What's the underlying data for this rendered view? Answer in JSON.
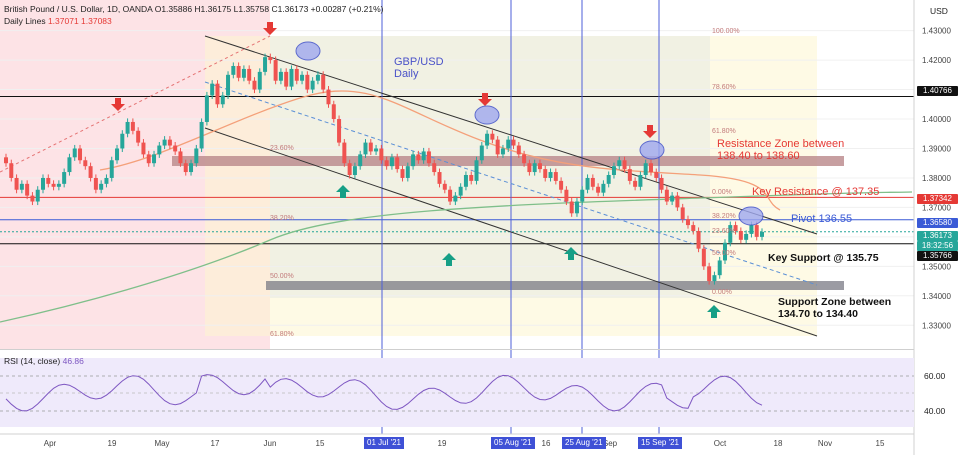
{
  "header": {
    "instrument": "British Pound / U.S. Dollar, 1D, OANDA",
    "ohlc": "O1.35886 H1.36175 L1.35758 C1.36173 +0.00287 (+0.21%)",
    "indicator": "Daily Lines",
    "indicator_values": "1.37071  1.37083",
    "currency": "USD"
  },
  "rsi": {
    "label": "RSI (14, close)",
    "value": "46.86",
    "levels": [
      "60.00",
      "40.00"
    ]
  },
  "annotations": {
    "chart_title_line1": "GBP/USD",
    "chart_title_line2": "Daily",
    "resistance_zone_line1": "Resistance Zone between",
    "resistance_zone_line2": "138.40 to 138.60",
    "key_resistance": "Key Resistance @ 137.35",
    "pivot": "Pivot 136.55",
    "key_support": "Key Support @ 135.75",
    "support_zone_line1": "Support Zone between",
    "support_zone_line2": "134.70 to 134.40"
  },
  "fib_levels": [
    "100.00%",
    "78.60%",
    "61.80%",
    "50.00%",
    "38.20%",
    "23.60%",
    "0.00%",
    "61.80%",
    "50.00%",
    "38.20%",
    "23.60%",
    "0.00%"
  ],
  "price_tags": [
    {
      "label": "1.40766",
      "color": "#111111"
    },
    {
      "label": "1.37342",
      "color": "#e53935"
    },
    {
      "label": "1.36580",
      "color": "#3a5ad6"
    },
    {
      "label": "1.36173",
      "color": "#26a69a"
    },
    {
      "label": "18:32:56",
      "color": "#26a69a"
    },
    {
      "label": "1.35766",
      "color": "#111111"
    }
  ],
  "date_boxes": [
    "01 Jul '21",
    "05 Aug '21",
    "25 Aug '21",
    "15 Sep '21"
  ],
  "chart_data": {
    "type": "candlestick",
    "y_axis_ticks": [
      "1.43000",
      "1.42000",
      "1.41000",
      "1.40000",
      "1.39000",
      "1.38000",
      "1.37000",
      "1.36000",
      "1.35000",
      "1.34000",
      "1.33000"
    ],
    "x_axis_ticks": [
      "Apr",
      "19",
      "May",
      "17",
      "Jun",
      "15",
      "01 Jul '21",
      "19",
      "05 Aug '21",
      "16",
      "25 Aug '21",
      "Sep",
      "15 Sep '21",
      "Oct",
      "18",
      "Nov",
      "15"
    ],
    "ylim": [
      1.325,
      1.437
    ],
    "last_close": 1.36173,
    "candles": [
      [
        1.387,
        1.385
      ],
      [
        1.385,
        1.38
      ],
      [
        1.38,
        1.376
      ],
      [
        1.376,
        1.378
      ],
      [
        1.378,
        1.374
      ],
      [
        1.374,
        1.372
      ],
      [
        1.372,
        1.376
      ],
      [
        1.376,
        1.38
      ],
      [
        1.38,
        1.378
      ],
      [
        1.378,
        1.377
      ],
      [
        1.377,
        1.378
      ],
      [
        1.378,
        1.382
      ],
      [
        1.382,
        1.387
      ],
      [
        1.387,
        1.39
      ],
      [
        1.39,
        1.386
      ],
      [
        1.386,
        1.384
      ],
      [
        1.384,
        1.38
      ],
      [
        1.38,
        1.376
      ],
      [
        1.376,
        1.378
      ],
      [
        1.378,
        1.38
      ],
      [
        1.38,
        1.386
      ],
      [
        1.386,
        1.39
      ],
      [
        1.39,
        1.395
      ],
      [
        1.395,
        1.399
      ],
      [
        1.399,
        1.396
      ],
      [
        1.396,
        1.392
      ],
      [
        1.392,
        1.388
      ],
      [
        1.388,
        1.385
      ],
      [
        1.385,
        1.388
      ],
      [
        1.388,
        1.391
      ],
      [
        1.391,
        1.393
      ],
      [
        1.393,
        1.391
      ],
      [
        1.391,
        1.389
      ],
      [
        1.389,
        1.385
      ],
      [
        1.385,
        1.382
      ],
      [
        1.382,
        1.385
      ],
      [
        1.385,
        1.39
      ],
      [
        1.39,
        1.399
      ],
      [
        1.399,
        1.408
      ],
      [
        1.408,
        1.412
      ],
      [
        1.412,
        1.405
      ],
      [
        1.405,
        1.408
      ],
      [
        1.408,
        1.415
      ],
      [
        1.415,
        1.418
      ],
      [
        1.418,
        1.414
      ],
      [
        1.414,
        1.417
      ],
      [
        1.417,
        1.413
      ],
      [
        1.413,
        1.41
      ],
      [
        1.41,
        1.416
      ],
      [
        1.416,
        1.421
      ],
      [
        1.421,
        1.42
      ],
      [
        1.42,
        1.413
      ],
      [
        1.413,
        1.416
      ],
      [
        1.416,
        1.411
      ],
      [
        1.411,
        1.417
      ],
      [
        1.417,
        1.413
      ],
      [
        1.413,
        1.415
      ],
      [
        1.415,
        1.41
      ],
      [
        1.41,
        1.413
      ],
      [
        1.413,
        1.415
      ],
      [
        1.415,
        1.41
      ],
      [
        1.41,
        1.405
      ],
      [
        1.405,
        1.4
      ],
      [
        1.4,
        1.392
      ],
      [
        1.392,
        1.385
      ],
      [
        1.385,
        1.381
      ],
      [
        1.381,
        1.384
      ],
      [
        1.384,
        1.388
      ],
      [
        1.388,
        1.392
      ],
      [
        1.392,
        1.389
      ],
      [
        1.389,
        1.39
      ],
      [
        1.39,
        1.386
      ],
      [
        1.386,
        1.384
      ],
      [
        1.384,
        1.387
      ],
      [
        1.387,
        1.383
      ],
      [
        1.383,
        1.38
      ],
      [
        1.38,
        1.384
      ],
      [
        1.384,
        1.388
      ],
      [
        1.388,
        1.386
      ],
      [
        1.386,
        1.389
      ],
      [
        1.389,
        1.385
      ],
      [
        1.385,
        1.382
      ],
      [
        1.382,
        1.378
      ],
      [
        1.378,
        1.376
      ],
      [
        1.376,
        1.372
      ],
      [
        1.372,
        1.374
      ],
      [
        1.374,
        1.377
      ],
      [
        1.377,
        1.381
      ],
      [
        1.381,
        1.379
      ],
      [
        1.379,
        1.386
      ],
      [
        1.386,
        1.391
      ],
      [
        1.391,
        1.395
      ],
      [
        1.395,
        1.393
      ],
      [
        1.393,
        1.388
      ],
      [
        1.388,
        1.39
      ],
      [
        1.39,
        1.393
      ],
      [
        1.393,
        1.391
      ],
      [
        1.391,
        1.388
      ],
      [
        1.388,
        1.385
      ],
      [
        1.385,
        1.382
      ],
      [
        1.382,
        1.385
      ],
      [
        1.385,
        1.383
      ],
      [
        1.383,
        1.38
      ],
      [
        1.38,
        1.382
      ],
      [
        1.382,
        1.379
      ],
      [
        1.379,
        1.376
      ],
      [
        1.376,
        1.372
      ],
      [
        1.372,
        1.368
      ],
      [
        1.368,
        1.372
      ],
      [
        1.372,
        1.376
      ],
      [
        1.376,
        1.38
      ],
      [
        1.38,
        1.377
      ],
      [
        1.377,
        1.375
      ],
      [
        1.375,
        1.378
      ],
      [
        1.378,
        1.381
      ],
      [
        1.381,
        1.384
      ],
      [
        1.384,
        1.386
      ],
      [
        1.386,
        1.383
      ],
      [
        1.383,
        1.379
      ],
      [
        1.379,
        1.377
      ],
      [
        1.377,
        1.381
      ],
      [
        1.381,
        1.385
      ],
      [
        1.385,
        1.382
      ],
      [
        1.382,
        1.38
      ],
      [
        1.38,
        1.376
      ],
      [
        1.376,
        1.372
      ],
      [
        1.372,
        1.374
      ],
      [
        1.374,
        1.37
      ],
      [
        1.37,
        1.366
      ],
      [
        1.366,
        1.364
      ],
      [
        1.364,
        1.362
      ],
      [
        1.362,
        1.356
      ],
      [
        1.356,
        1.35
      ],
      [
        1.35,
        1.345
      ],
      [
        1.345,
        1.347
      ],
      [
        1.347,
        1.352
      ],
      [
        1.352,
        1.358
      ],
      [
        1.358,
        1.364
      ],
      [
        1.364,
        1.362
      ],
      [
        1.362,
        1.359
      ],
      [
        1.359,
        1.361
      ],
      [
        1.361,
        1.364
      ],
      [
        1.364,
        1.36
      ],
      [
        1.36,
        1.3617
      ]
    ]
  }
}
